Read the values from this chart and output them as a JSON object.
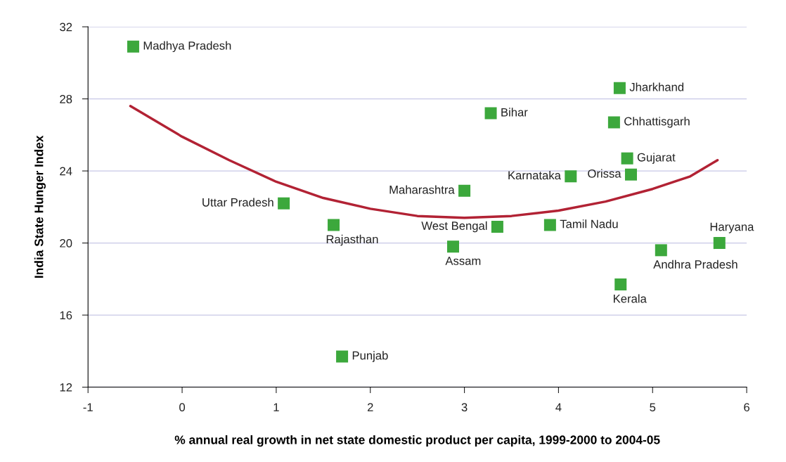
{
  "chart_data": {
    "type": "scatter",
    "xlabel": "% annual real growth in net state domestic product per capita, 1999-2000 to 2004-05",
    "ylabel": "India State Hunger Index",
    "xlim": [
      -1,
      6
    ],
    "xticks": [
      -1,
      0,
      1,
      2,
      3,
      4,
      5,
      6
    ],
    "ylim": [
      12,
      32
    ],
    "yticks": [
      12,
      16,
      20,
      24,
      28,
      32
    ],
    "grid": "y",
    "legend": false,
    "marker": "square",
    "series": [
      {
        "color": "#3ca83c",
        "x": [
          -0.52,
          4.65,
          3.28,
          4.59,
          4.73,
          4.77,
          4.13,
          3.0,
          1.08,
          1.61,
          3.35,
          3.91,
          5.71,
          2.88,
          5.09,
          4.66,
          1.7
        ],
        "values": [
          30.9,
          28.6,
          27.2,
          26.7,
          24.7,
          23.8,
          23.7,
          22.9,
          22.2,
          21.0,
          20.9,
          21.0,
          20.0,
          19.8,
          19.6,
          17.7,
          13.7
        ]
      },
      {
        "type": "line",
        "color": "#b22234",
        "line_style": "solid",
        "marker": "none",
        "x": [
          -0.55,
          0,
          0.5,
          1,
          1.5,
          2,
          2.5,
          3,
          3.5,
          4,
          4.5,
          5,
          5.4,
          5.69
        ],
        "values": [
          27.6,
          25.9,
          24.6,
          23.4,
          22.5,
          21.9,
          21.5,
          21.4,
          21.5,
          21.8,
          22.3,
          23.0,
          23.7,
          24.6
        ]
      }
    ],
    "annotations": [
      {
        "text": "Madhya Pradesh",
        "x": -0.52,
        "y": 30.9
      },
      {
        "text": "Jharkhand",
        "x": 4.65,
        "y": 28.6
      },
      {
        "text": "Bihar",
        "x": 3.28,
        "y": 27.2
      },
      {
        "text": "Chhattisgarh",
        "x": 4.59,
        "y": 26.7
      },
      {
        "text": "Gujarat",
        "x": 4.73,
        "y": 24.7
      },
      {
        "text": "Orissa",
        "x": 4.77,
        "y": 23.8
      },
      {
        "text": "Karnataka",
        "x": 4.13,
        "y": 23.7
      },
      {
        "text": "Maharashtra",
        "x": 3.0,
        "y": 22.9
      },
      {
        "text": "Uttar Pradesh",
        "x": 1.08,
        "y": 22.2
      },
      {
        "text": "Rajasthan",
        "x": 1.61,
        "y": 21.0
      },
      {
        "text": "West Bengal",
        "x": 3.35,
        "y": 20.9
      },
      {
        "text": "Tamil Nadu",
        "x": 3.91,
        "y": 21.0
      },
      {
        "text": "Haryana",
        "x": 5.71,
        "y": 20.0
      },
      {
        "text": "Assam",
        "x": 2.88,
        "y": 19.8
      },
      {
        "text": "Andhra Pradesh",
        "x": 5.09,
        "y": 19.6
      },
      {
        "text": "Kerala",
        "x": 4.66,
        "y": 17.7
      },
      {
        "text": "Punjab",
        "x": 1.7,
        "y": 13.7
      }
    ]
  }
}
